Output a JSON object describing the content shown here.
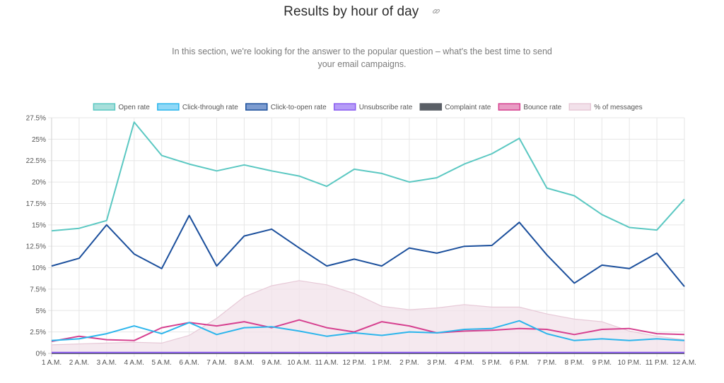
{
  "header": {
    "title": "Results by hour of day",
    "link_icon": "link-icon",
    "subtitle": "In this section, we're looking for the answer to the popular question – what's the best time to send your email campaigns."
  },
  "chart_data": {
    "type": "line",
    "title": "Results by hour of day",
    "categories": [
      "1 A.M.",
      "2 A.M.",
      "3 A.M.",
      "4 A.M.",
      "5 A.M.",
      "6 A.M.",
      "7 A.M.",
      "8 A.M.",
      "9 A.M.",
      "10 A.M.",
      "11 A.M.",
      "12 P.M.",
      "1 P.M.",
      "2 P.M.",
      "3 P.M.",
      "4 P.M.",
      "5 P.M.",
      "6 P.M.",
      "7 P.M.",
      "8 P.M.",
      "9 P.M.",
      "10 P.M.",
      "11 P.M.",
      "12 A.M."
    ],
    "y_ticks": [
      "0%",
      "2.5%",
      "5%",
      "7.5%",
      "10%",
      "12.5%",
      "15%",
      "17.5%",
      "20%",
      "22.5%",
      "25%",
      "27.5%"
    ],
    "ylim": [
      0,
      27.5
    ],
    "grid": true,
    "legend_position": "top",
    "series": [
      {
        "name": "Open rate",
        "color": "#5bc8c2",
        "fill": "#a7dfdb",
        "values": [
          14.3,
          14.6,
          15.5,
          27.0,
          23.1,
          22.1,
          21.3,
          22.0,
          21.3,
          20.7,
          19.5,
          21.5,
          21.0,
          20.0,
          20.5,
          22.1,
          23.3,
          25.1,
          19.3,
          18.4,
          16.2,
          14.7,
          14.4,
          18.0
        ]
      },
      {
        "name": "Click-through rate",
        "color": "#2bb5ec",
        "fill": "#8fd8f7",
        "values": [
          1.5,
          1.7,
          2.3,
          3.2,
          2.3,
          3.6,
          2.2,
          3.0,
          3.1,
          2.6,
          2.0,
          2.4,
          2.1,
          2.5,
          2.4,
          2.8,
          2.9,
          3.8,
          2.3,
          1.5,
          1.7,
          1.5,
          1.7,
          1.5
        ]
      },
      {
        "name": "Click-to-open rate",
        "color": "#1b4f9c",
        "fill": "#7d9cd0",
        "values": [
          10.2,
          11.1,
          15.0,
          11.6,
          9.9,
          16.1,
          10.2,
          13.7,
          14.5,
          12.3,
          10.2,
          11.0,
          10.2,
          12.3,
          11.7,
          12.5,
          12.6,
          15.3,
          11.5,
          8.2,
          10.3,
          9.9,
          11.7,
          7.8
        ]
      },
      {
        "name": "Unsubscribe rate",
        "color": "#8a5cf0",
        "fill": "#b59cf7",
        "values": [
          0.1,
          0.1,
          0.1,
          0.1,
          0.1,
          0.1,
          0.1,
          0.1,
          0.1,
          0.1,
          0.1,
          0.1,
          0.1,
          0.1,
          0.1,
          0.1,
          0.1,
          0.1,
          0.1,
          0.1,
          0.1,
          0.1,
          0.1,
          0.1
        ]
      },
      {
        "name": "Complaint rate",
        "color": "#5a5f66",
        "fill": "#5a5f66",
        "values": [
          0,
          0,
          0,
          0,
          0,
          0,
          0,
          0,
          0,
          0,
          0,
          0,
          0,
          0,
          0,
          0,
          0,
          0,
          0,
          0,
          0,
          0,
          0,
          0
        ]
      },
      {
        "name": "Bounce rate",
        "color": "#d6408f",
        "fill": "#e89cc4",
        "values": [
          1.4,
          2.0,
          1.6,
          1.5,
          3.0,
          3.6,
          3.2,
          3.7,
          3.0,
          3.9,
          3.0,
          2.5,
          3.7,
          3.2,
          2.4,
          2.6,
          2.7,
          2.9,
          2.8,
          2.2,
          2.8,
          2.9,
          2.3,
          2.2
        ]
      },
      {
        "name": "% of messages",
        "color": "#e7c9d7",
        "fill": "#f2e1ea",
        "area": true,
        "values": [
          1.0,
          1.1,
          1.2,
          1.3,
          1.2,
          2.1,
          4.1,
          6.6,
          7.9,
          8.5,
          8.0,
          7.0,
          5.5,
          5.1,
          5.3,
          5.7,
          5.4,
          5.4,
          4.6,
          4.0,
          3.7,
          2.6,
          2.0,
          1.6
        ]
      }
    ]
  }
}
